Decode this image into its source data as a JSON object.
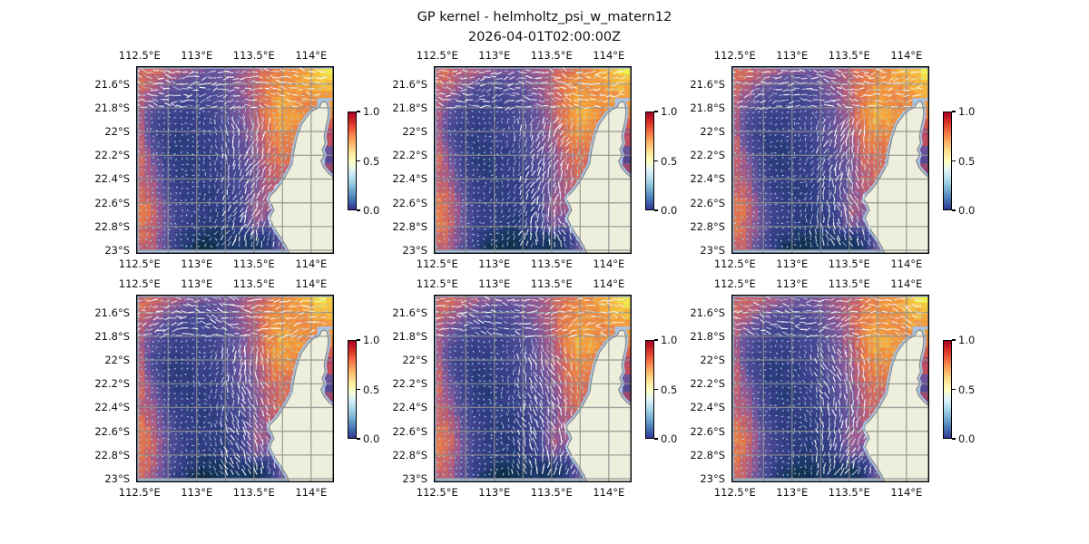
{
  "figure": {
    "title": "GP kernel - helmholtz_psi_w_matern12",
    "subtitle": "2026-04-01T02:00:00Z"
  },
  "chart_data": {
    "type": "heatmap",
    "title": "GP kernel - helmholtz_psi_w_matern12",
    "subtitle": "2026-04-01T02:00:00Z",
    "grid": {
      "rows": 2,
      "cols": 3
    },
    "overlays": [
      "quiver-arrows",
      "coastline-landmask",
      "graticule"
    ],
    "panels": [
      {
        "id": "r1c1"
      },
      {
        "id": "r1c2"
      },
      {
        "id": "r1c3"
      },
      {
        "id": "r2c1"
      },
      {
        "id": "r2c2"
      },
      {
        "id": "r2c3"
      }
    ],
    "axes": {
      "x_tick_labels": [
        "112.5°E",
        "113°E",
        "113.5°E",
        "114°E"
      ],
      "x_tick_lons": [
        112.5,
        113.0,
        113.5,
        114.0
      ],
      "y_tick_labels": [
        "21.6°S",
        "21.8°S",
        "22°S",
        "22.2°S",
        "22.4°S",
        "22.6°S",
        "22.8°S",
        "23°S"
      ],
      "y_tick_lats": [
        21.6,
        21.8,
        22.0,
        22.2,
        22.4,
        22.6,
        22.8,
        23.0
      ],
      "grid_lons": [
        112.75,
        113.0,
        113.25,
        113.5,
        113.75,
        114.0
      ],
      "grid_lats": [
        21.6,
        21.8,
        22.0,
        22.2,
        22.4,
        22.6,
        22.8,
        23.0
      ],
      "extent": {
        "lon_min": 112.47,
        "lon_max": 114.2,
        "lat_min": 21.45,
        "lat_max": 23.03
      },
      "grid_on": true
    },
    "colorbar": {
      "tick_labels": [
        "1.0",
        "0.5",
        "0.0"
      ],
      "tick_values": [
        1.0,
        0.5,
        0.0
      ],
      "vmin": 0.0,
      "vmax": 1.0,
      "colors_bottom_to_top": [
        "#313695",
        "#4575b4",
        "#74add1",
        "#abd9e9",
        "#e0f3f8",
        "#ffffbf",
        "#fee090",
        "#fdae61",
        "#f46d43",
        "#d73027",
        "#a50026"
      ]
    },
    "field": {
      "description": "normalized scalar field 0-1, 16x16 grid, row 0 = north (21.45S), col 0 = west (112.47E)",
      "colormap_stops": [
        [
          0.0,
          "#0a2430"
        ],
        [
          0.12,
          "#16355e"
        ],
        [
          0.25,
          "#333d85"
        ],
        [
          0.38,
          "#4c4a94"
        ],
        [
          0.5,
          "#6d559b"
        ],
        [
          0.6,
          "#97598f"
        ],
        [
          0.7,
          "#c06171"
        ],
        [
          0.78,
          "#e4774d"
        ],
        [
          0.87,
          "#f39b3c"
        ],
        [
          0.94,
          "#f6c33f"
        ],
        [
          1.0,
          "#eef352"
        ]
      ],
      "values": [
        [
          0.72,
          0.75,
          0.72,
          0.68,
          0.62,
          0.55,
          0.52,
          0.56,
          0.62,
          0.7,
          0.76,
          0.8,
          0.84,
          0.9,
          0.96,
          1.0
        ],
        [
          0.75,
          0.72,
          0.62,
          0.52,
          0.45,
          0.42,
          0.45,
          0.52,
          0.6,
          0.7,
          0.78,
          0.84,
          0.86,
          0.88,
          0.92,
          0.96
        ],
        [
          0.72,
          0.62,
          0.48,
          0.4,
          0.36,
          0.35,
          0.4,
          0.48,
          0.58,
          0.7,
          0.8,
          0.86,
          0.84,
          0.84,
          0.88,
          0.9
        ],
        [
          0.7,
          0.5,
          0.38,
          0.33,
          0.31,
          0.32,
          0.36,
          0.44,
          0.55,
          0.68,
          0.8,
          0.88,
          0.86,
          0.82,
          0.84,
          0.86
        ],
        [
          0.68,
          0.42,
          0.32,
          0.28,
          0.28,
          0.3,
          0.34,
          0.42,
          0.52,
          0.66,
          0.8,
          0.9,
          0.88,
          0.84,
          0.82,
          0.84
        ],
        [
          0.72,
          0.38,
          0.28,
          0.25,
          0.26,
          0.28,
          0.32,
          0.4,
          0.5,
          0.64,
          0.78,
          0.86,
          0.84,
          0.8,
          0.78,
          0.8
        ],
        [
          0.75,
          0.42,
          0.27,
          0.23,
          0.24,
          0.27,
          0.31,
          0.38,
          0.48,
          0.6,
          0.76,
          0.82,
          0.8,
          0.76,
          0.74,
          0.76
        ],
        [
          0.78,
          0.52,
          0.3,
          0.22,
          0.22,
          0.25,
          0.29,
          0.36,
          0.45,
          0.56,
          0.72,
          0.78,
          0.76,
          0.72,
          0.7,
          0.72
        ],
        [
          0.75,
          0.58,
          0.34,
          0.24,
          0.21,
          0.24,
          0.28,
          0.34,
          0.42,
          0.52,
          0.7,
          0.76,
          0.72,
          0.68,
          0.66,
          0.68
        ],
        [
          0.72,
          0.62,
          0.38,
          0.26,
          0.22,
          0.24,
          0.27,
          0.32,
          0.4,
          0.5,
          0.68,
          0.74,
          0.68,
          0.64,
          0.62,
          0.64
        ],
        [
          0.75,
          0.68,
          0.43,
          0.28,
          0.24,
          0.23,
          0.25,
          0.3,
          0.37,
          0.5,
          0.66,
          0.72,
          0.64,
          0.6,
          0.58,
          0.6
        ],
        [
          0.78,
          0.72,
          0.48,
          0.3,
          0.25,
          0.23,
          0.24,
          0.27,
          0.34,
          0.6,
          0.62,
          0.7,
          0.6,
          0.56,
          0.56,
          0.58
        ],
        [
          0.8,
          0.75,
          0.52,
          0.32,
          0.26,
          0.24,
          0.23,
          0.25,
          0.31,
          0.64,
          0.58,
          0.62,
          0.56,
          0.52,
          0.52,
          0.54
        ],
        [
          0.78,
          0.72,
          0.5,
          0.31,
          0.25,
          0.21,
          0.2,
          0.22,
          0.28,
          0.55,
          0.45,
          0.53,
          0.51,
          0.48,
          0.5,
          0.52
        ],
        [
          0.75,
          0.7,
          0.46,
          0.28,
          0.21,
          0.14,
          0.12,
          0.17,
          0.18,
          0.14,
          0.22,
          0.48,
          0.46,
          0.44,
          0.47,
          0.5
        ],
        [
          0.72,
          0.67,
          0.43,
          0.26,
          0.08,
          0.04,
          0.07,
          0.14,
          0.15,
          0.09,
          0.18,
          0.45,
          0.43,
          0.4,
          0.44,
          0.48
        ]
      ]
    },
    "land": {
      "fill_color": "#eeeedd",
      "stroke_color": "#8a8a8a",
      "water_color": "#a7c2e2",
      "outline": [
        [
          0.928,
          0.215
        ],
        [
          0.936,
          0.196
        ],
        [
          0.952,
          0.188
        ],
        [
          0.964,
          0.196
        ],
        [
          0.968,
          0.215
        ],
        [
          0.972,
          0.245
        ],
        [
          0.968,
          0.285
        ],
        [
          0.958,
          0.33
        ],
        [
          0.95,
          0.375
        ],
        [
          0.956,
          0.41
        ],
        [
          0.94,
          0.445
        ],
        [
          0.952,
          0.475
        ],
        [
          0.934,
          0.505
        ],
        [
          0.948,
          0.54
        ],
        [
          0.972,
          0.57
        ],
        [
          1.0,
          0.595
        ],
        [
          1.0,
          1.0
        ],
        [
          0.775,
          1.0
        ],
        [
          0.76,
          0.962
        ],
        [
          0.737,
          0.922
        ],
        [
          0.71,
          0.882
        ],
        [
          0.698,
          0.86
        ],
        [
          0.676,
          0.812
        ],
        [
          0.686,
          0.786
        ],
        [
          0.697,
          0.768
        ],
        [
          0.688,
          0.742
        ],
        [
          0.671,
          0.708
        ],
        [
          0.678,
          0.692
        ],
        [
          0.706,
          0.662
        ],
        [
          0.734,
          0.622
        ],
        [
          0.752,
          0.592
        ],
        [
          0.788,
          0.522
        ],
        [
          0.798,
          0.452
        ],
        [
          0.813,
          0.378
        ],
        [
          0.836,
          0.31
        ],
        [
          0.873,
          0.256
        ],
        [
          0.9,
          0.232
        ],
        [
          0.92,
          0.223
        ]
      ],
      "gulf_rect": [
        0.915,
        0.17,
        0.085,
        0.45
      ],
      "gulf_cells": [
        [
          0.95,
          0.185,
          0.05,
          0.045,
          "#f2a03e"
        ],
        [
          0.935,
          0.23,
          0.065,
          0.05,
          "#ef8a44"
        ],
        [
          0.95,
          0.28,
          0.05,
          0.05,
          "#d95f50"
        ],
        [
          0.93,
          0.33,
          0.07,
          0.045,
          "#b44a67"
        ],
        [
          0.955,
          0.375,
          0.045,
          0.05,
          "#c24f5e"
        ],
        [
          0.93,
          0.425,
          0.07,
          0.05,
          "#6d5398"
        ],
        [
          0.955,
          0.475,
          0.045,
          0.045,
          "#584a90"
        ],
        [
          0.935,
          0.52,
          0.065,
          0.045,
          "#9c4a6e"
        ],
        [
          0.955,
          0.565,
          0.045,
          0.04,
          "#4d458b"
        ]
      ]
    },
    "quiver": {
      "dot_color": "#96d2e6",
      "small_arrow_color": "#bee1f0",
      "large_arrow_color": "#ffffff"
    },
    "graticule_color": "#919191"
  }
}
